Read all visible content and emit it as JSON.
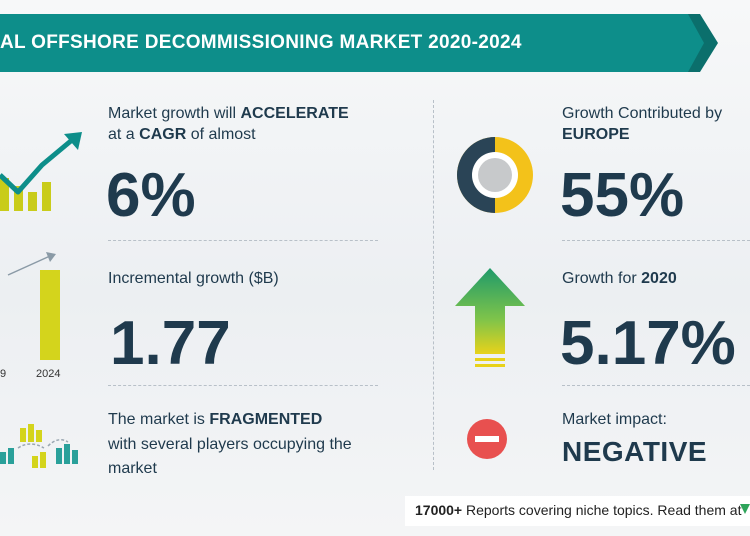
{
  "header": {
    "title": "AL OFFSHORE DECOMMISSIONING MARKET 2020-2024"
  },
  "colors": {
    "teal": "#0d8e8a",
    "dark_teal": "#0b6f6c",
    "navy": "#1f3a4d",
    "yellow": "#f3c21a",
    "green": "#2ea45a",
    "red": "#e8504f"
  },
  "cagr": {
    "label_line1_pre": "Market growth will ",
    "label_line1_bold": "ACCELERATE",
    "label_line2_pre": "at a ",
    "label_line2_bold": "CAGR",
    "label_line2_post": " of almost",
    "value": "6%"
  },
  "contribution": {
    "label_line1": "Growth Contributed by",
    "label_line2": "EUROPE",
    "value": "55%"
  },
  "incremental": {
    "label": "Incremental growth ($B)",
    "value": "1.77",
    "tick_left": "9",
    "tick_right": "2024"
  },
  "growth2020": {
    "label_pre": "Growth for ",
    "label_bold": "2020",
    "value": "5.17%"
  },
  "market": {
    "line1_pre": "The market is ",
    "line1_bold": "FRAGMENTED",
    "line2": "with several players occupying the",
    "line3": "market"
  },
  "impact": {
    "label": "Market impact:",
    "value": "NEGATIVE"
  },
  "footer": {
    "bold": "17000+",
    "text": " Reports covering niche topics. Read them at"
  },
  "icons": [
    "growth-chart-icon",
    "donut-chart-icon",
    "bar-growth-icon",
    "up-arrow-icon",
    "players-icon",
    "minus-circle-icon"
  ]
}
